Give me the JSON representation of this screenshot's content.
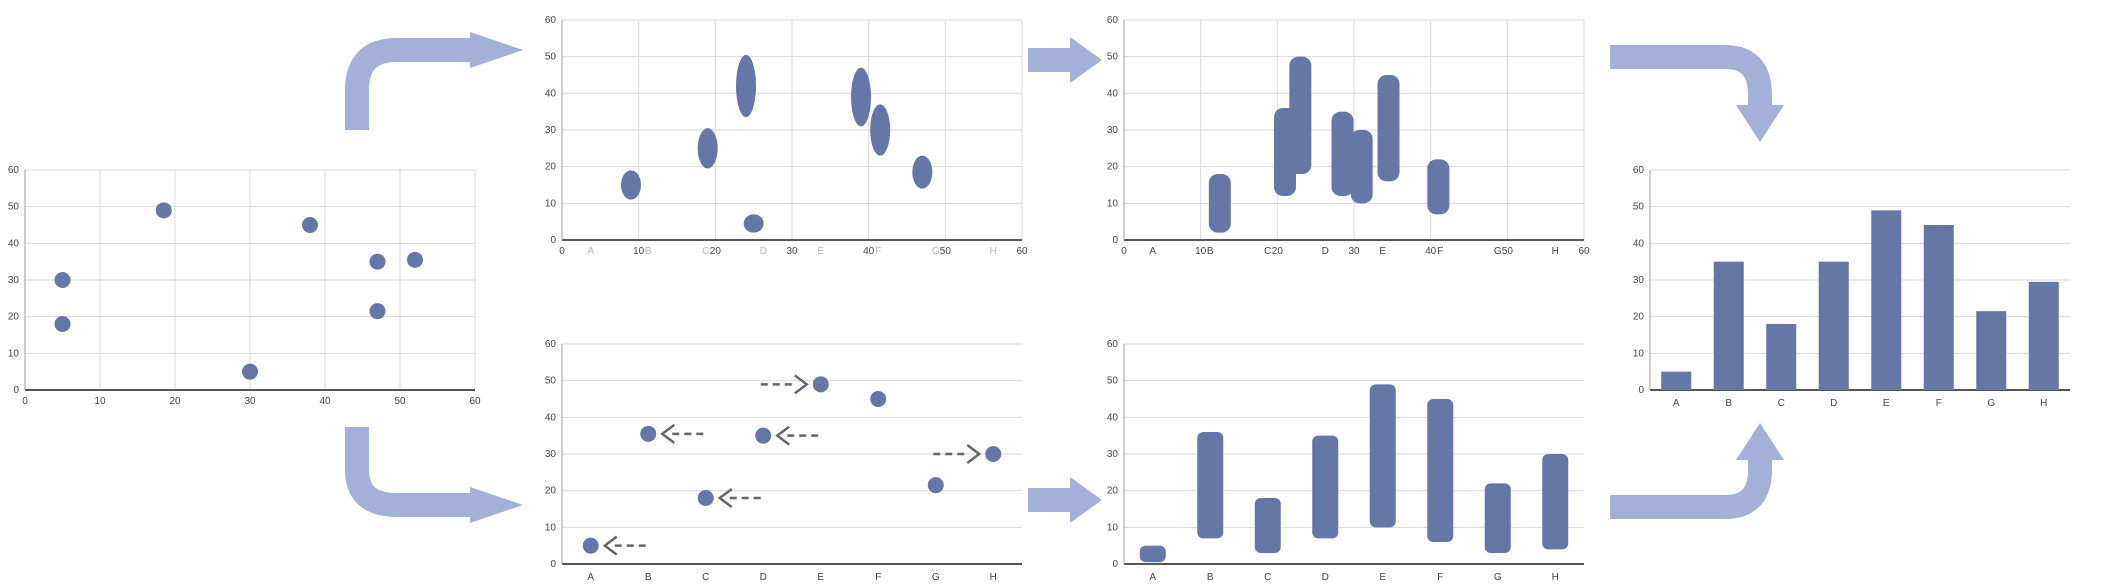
{
  "colors": {
    "mark": "#6577a6",
    "arrow": "#a3b1d8",
    "grid": "#d9d9d9",
    "axis": "#555555"
  },
  "chart_data": [
    {
      "id": "p1",
      "type": "scatter",
      "xlim": [
        0,
        60
      ],
      "ylim": [
        0,
        60
      ],
      "xticks": [
        "0",
        "10",
        "20",
        "30",
        "40",
        "50",
        "60"
      ],
      "yticks": [
        "0",
        "10",
        "20",
        "30",
        "40",
        "50",
        "60"
      ],
      "points": [
        {
          "x": 5,
          "y": 30
        },
        {
          "x": 5,
          "y": 18
        },
        {
          "x": 18.5,
          "y": 49
        },
        {
          "x": 30,
          "y": 5
        },
        {
          "x": 38,
          "y": 45
        },
        {
          "x": 47,
          "y": 35
        },
        {
          "x": 47,
          "y": 21.5
        },
        {
          "x": 52,
          "y": 35.5
        }
      ]
    },
    {
      "id": "p2",
      "type": "scatter",
      "xlim": [
        0,
        60
      ],
      "ylim": [
        0,
        60
      ],
      "xticks": [
        "0",
        "10",
        "20",
        "30",
        "40",
        "50",
        "60"
      ],
      "yticks": [
        "0",
        "10",
        "20",
        "30",
        "40",
        "50",
        "60"
      ],
      "faint_labels": [
        "A",
        "B",
        "C",
        "D",
        "E",
        "F",
        "G",
        "H"
      ],
      "blobs": [
        {
          "x": 9,
          "y": 15,
          "h": 8
        },
        {
          "x": 19,
          "y": 25,
          "h": 11
        },
        {
          "x": 24,
          "y": 42,
          "h": 17
        },
        {
          "x": 25,
          "y": 4.5,
          "h": 5
        },
        {
          "x": 39,
          "y": 39,
          "h": 16
        },
        {
          "x": 41.5,
          "y": 30,
          "h": 14
        },
        {
          "x": 47,
          "y": 18.5,
          "h": 9
        }
      ]
    },
    {
      "id": "p3",
      "type": "scatter",
      "xlim": [
        0,
        60
      ],
      "ylim": [
        0,
        60
      ],
      "xticks": [
        "A",
        "B",
        "C",
        "D",
        "E",
        "F",
        "G",
        "H"
      ],
      "yticks": [
        "0",
        "10",
        "20",
        "30",
        "40",
        "50",
        "60"
      ],
      "points": [
        {
          "x": "A",
          "y": 5
        },
        {
          "x": "B",
          "y": 35.5
        },
        {
          "x": "C",
          "y": 18
        },
        {
          "x": "D",
          "y": 35
        },
        {
          "x": "E",
          "y": 49
        },
        {
          "x": "F",
          "y": 45
        },
        {
          "x": "G",
          "y": 21.5
        },
        {
          "x": "H",
          "y": 30
        }
      ],
      "moves": [
        {
          "cat": "A",
          "y": 5,
          "dir": "left"
        },
        {
          "cat": "B",
          "y": 35.5,
          "dir": "left"
        },
        {
          "cat": "C",
          "y": 18,
          "dir": "left"
        },
        {
          "cat": "D",
          "y": 35,
          "dir": "left"
        },
        {
          "cat": "E",
          "y": 49,
          "dir": "right"
        },
        {
          "cat": "H",
          "y": 30,
          "dir": "right"
        }
      ]
    },
    {
      "id": "p4",
      "type": "bar",
      "xlim": [
        0,
        60
      ],
      "ylim": [
        0,
        60
      ],
      "xticks": [
        "0",
        "10",
        "20",
        "30",
        "40",
        "50",
        "60"
      ],
      "yticks": [
        "0",
        "10",
        "20",
        "30",
        "40",
        "50",
        "60"
      ],
      "faint_labels": [
        "A",
        "B",
        "C",
        "D",
        "E",
        "F",
        "G",
        "H"
      ],
      "shapes": [
        {
          "x": 12.5,
          "lo": 2,
          "hi": 18
        },
        {
          "x": 21,
          "lo": 12,
          "hi": 36
        },
        {
          "x": 23,
          "lo": 18,
          "hi": 50
        },
        {
          "x": 28.5,
          "lo": 12,
          "hi": 35
        },
        {
          "x": 31,
          "lo": 10,
          "hi": 30
        },
        {
          "x": 34.5,
          "lo": 16,
          "hi": 45
        },
        {
          "x": 41,
          "lo": 7,
          "hi": 22
        }
      ]
    },
    {
      "id": "p5",
      "type": "bar",
      "xlim": [
        0,
        8
      ],
      "ylim": [
        0,
        60
      ],
      "xticks": [
        "A",
        "B",
        "C",
        "D",
        "E",
        "F",
        "G",
        "H"
      ],
      "yticks": [
        "0",
        "10",
        "20",
        "30",
        "40",
        "50",
        "60"
      ],
      "ranges": [
        {
          "cat": "A",
          "lo": 0.5,
          "hi": 5
        },
        {
          "cat": "B",
          "lo": 7,
          "hi": 36
        },
        {
          "cat": "C",
          "lo": 3,
          "hi": 18
        },
        {
          "cat": "D",
          "lo": 7,
          "hi": 35
        },
        {
          "cat": "E",
          "lo": 10,
          "hi": 49
        },
        {
          "cat": "F",
          "lo": 6,
          "hi": 45
        },
        {
          "cat": "G",
          "lo": 3,
          "hi": 22
        },
        {
          "cat": "H",
          "lo": 4,
          "hi": 30
        }
      ]
    },
    {
      "id": "p6",
      "type": "bar",
      "ylim": [
        0,
        60
      ],
      "categories": [
        "A",
        "B",
        "C",
        "D",
        "E",
        "F",
        "G",
        "H"
      ],
      "values": [
        5,
        35,
        18,
        35,
        49,
        45,
        21.5,
        29.5
      ],
      "yticks": [
        "0",
        "10",
        "20",
        "30",
        "40",
        "50",
        "60"
      ]
    }
  ]
}
